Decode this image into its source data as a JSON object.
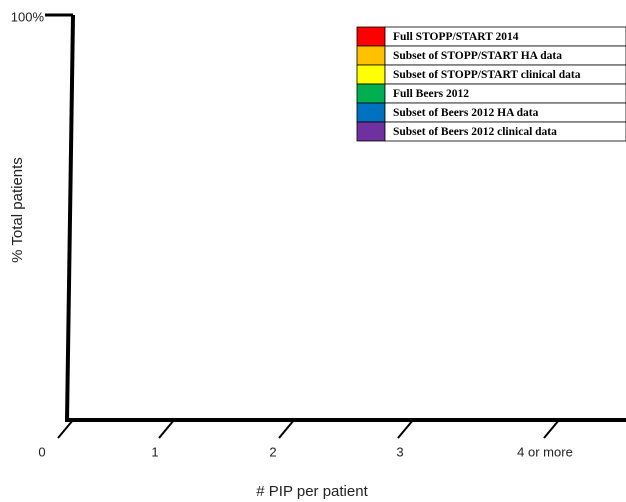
{
  "chart_data": {
    "type": "bar",
    "x_label": "# PIP per patient",
    "y_label": "% Total patients",
    "categories": [
      "0",
      "1",
      "2",
      "3",
      "4 or more"
    ],
    "ylim": [
      0,
      100
    ],
    "yticks": [
      {
        "value": 100,
        "label": "100%"
      }
    ],
    "series": [
      {
        "name": "Full STOPP/START 2014",
        "color": "#ff0000"
      },
      {
        "name": "Subset of STOPP/START HA data",
        "color": "#ffc000"
      },
      {
        "name": "Subset of STOPP/START clinical data",
        "color": "#ffff00"
      },
      {
        "name": "Full Beers 2012",
        "color": "#00b050"
      },
      {
        "name": "Subset of Beers 2012 HA data",
        "color": "#0070c0"
      },
      {
        "name": "Subset of Beers 2012 clinical data",
        "color": "#7030a0"
      }
    ]
  }
}
